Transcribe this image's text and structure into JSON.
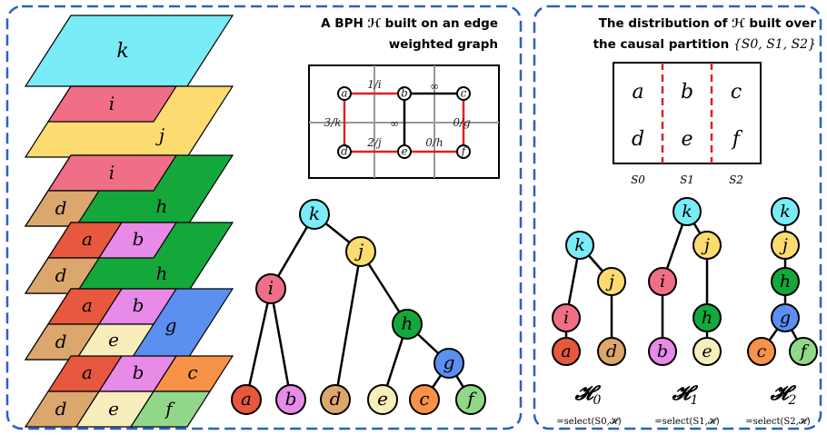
{
  "left_panel": {
    "title_line1": "A BPH ℋ built on an edge",
    "title_line2": "weighted graph"
  },
  "right_panel": {
    "title_line1": "The distribution of ℋ built over",
    "title_line2_prefix": "the causal partition ",
    "title_line2_math": "{S",
    "partition_math": "{S0, S1, S2}"
  },
  "layers": [
    {
      "regions": [
        {
          "label": "k",
          "color": "#79ecf8"
        }
      ]
    },
    {
      "regions": [
        {
          "label": "i",
          "color": "#f06f86"
        },
        {
          "label": "j",
          "color": "#fcdc70"
        }
      ]
    },
    {
      "regions": [
        {
          "label": "i",
          "color": "#f06f86"
        },
        {
          "label": "d",
          "color": "#dba76d"
        },
        {
          "label": "h",
          "color": "#14a83b"
        }
      ]
    },
    {
      "regions": [
        {
          "label": "a",
          "color": "#e8583e"
        },
        {
          "label": "b",
          "color": "#e88ae8"
        },
        {
          "label": "d",
          "color": "#dba76d"
        },
        {
          "label": "h",
          "color": "#14a83b"
        }
      ]
    },
    {
      "regions": [
        {
          "label": "a",
          "color": "#e8583e"
        },
        {
          "label": "b",
          "color": "#e88ae8"
        },
        {
          "label": "g",
          "color": "#5b8ff0"
        },
        {
          "label": "d",
          "color": "#dba76d"
        },
        {
          "label": "e",
          "color": "#f8eebc"
        }
      ]
    },
    {
      "regions": [
        {
          "label": "a",
          "color": "#e8583e"
        },
        {
          "label": "b",
          "color": "#e88ae8"
        },
        {
          "label": "c",
          "color": "#f89248"
        },
        {
          "label": "d",
          "color": "#dba76d"
        },
        {
          "label": "e",
          "color": "#f8eebc"
        },
        {
          "label": "f",
          "color": "#92d88a"
        }
      ]
    }
  ],
  "graph": {
    "nodes": [
      "a",
      "b",
      "c",
      "d",
      "e",
      "f"
    ],
    "edge_labels": [
      "1/i",
      "∞",
      "3/k",
      "∞",
      "0/g",
      "2/j",
      "0/h"
    ]
  },
  "tree": {
    "nodes": [
      {
        "id": "k",
        "color": "#79ecf8"
      },
      {
        "id": "i",
        "color": "#f06f86"
      },
      {
        "id": "j",
        "color": "#fcdc70"
      },
      {
        "id": "h",
        "color": "#14a83b"
      },
      {
        "id": "g",
        "color": "#5b8ff0"
      },
      {
        "id": "a",
        "color": "#e8583e"
      },
      {
        "id": "b",
        "color": "#e88ae8"
      },
      {
        "id": "d",
        "color": "#dba76d"
      },
      {
        "id": "e",
        "color": "#f8eebc"
      },
      {
        "id": "c",
        "color": "#f89248"
      },
      {
        "id": "f",
        "color": "#92d88a"
      }
    ]
  },
  "partition_grid": {
    "rows": [
      [
        "a",
        "b",
        "c"
      ],
      [
        "d",
        "e",
        "f"
      ]
    ],
    "col_labels": [
      "S0",
      "S1",
      "S2"
    ]
  },
  "subtrees": [
    {
      "name": "𝓗",
      "subscript": "0",
      "select_label": "=select(S0,𝓗)"
    },
    {
      "name": "𝓗",
      "subscript": "1",
      "select_label": "=select(S1,𝓗)"
    },
    {
      "name": "𝓗",
      "subscript": "2",
      "select_label": "=select(S2,𝓗)"
    }
  ],
  "colors": {
    "frame": "#2a5fc9",
    "cut_edge": "#e02020",
    "grid": "#999999"
  }
}
